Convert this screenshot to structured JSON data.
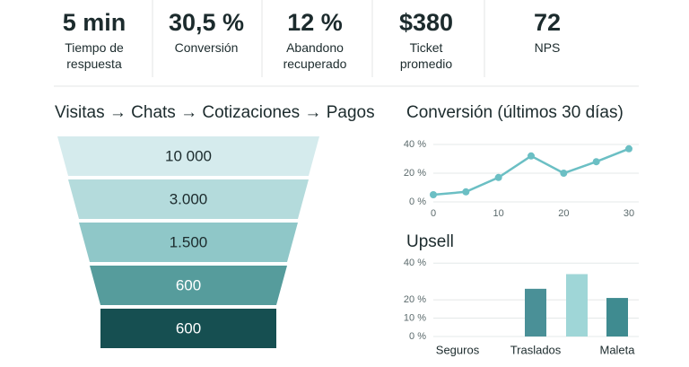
{
  "kpis": [
    {
      "value": "5 min",
      "label": "Tiempo de respuesta"
    },
    {
      "value": "30,5 %",
      "label": "Conversión"
    },
    {
      "value": "12 %",
      "label": "Abandono recuperado"
    },
    {
      "value": "$380",
      "label": "Ticket promedio"
    },
    {
      "value": "72",
      "label": "NPS"
    }
  ],
  "chart_data": [
    {
      "type": "funnel",
      "title": "Visitas → Chats → Cotizaciones → Pagos",
      "values": [
        10000,
        3000,
        1500,
        600,
        600
      ],
      "value_labels": [
        "10 000",
        "3.000",
        "1.500",
        "600",
        "600"
      ],
      "colors": [
        "#d5ebed",
        "#b4dbdc",
        "#8fc7c8",
        "#569c9c",
        "#164f51"
      ]
    },
    {
      "type": "line",
      "title": "Conversión (últimos 30 días)",
      "x": [
        0,
        5,
        10,
        15,
        20,
        25,
        30
      ],
      "values": [
        5,
        7,
        17,
        32,
        20,
        28,
        37
      ],
      "color": "#6bbfc4",
      "xlim": [
        0,
        30
      ],
      "xticks": [
        0,
        10,
        20,
        30
      ],
      "ylim": [
        0,
        40
      ],
      "yticks": [
        {
          "value": 0,
          "label": "0 %"
        },
        {
          "value": 20,
          "label": "20 %"
        },
        {
          "value": 40,
          "label": "40 %"
        }
      ],
      "grid": true
    },
    {
      "type": "bar",
      "title": "Upsell",
      "categories": [
        "Seguros",
        "Traslados",
        null,
        "Maleta"
      ],
      "values": [
        0,
        26,
        34,
        21
      ],
      "colors": [
        "#4a9097",
        "#4a9097",
        "#9fd6d7",
        "#3f8b90"
      ],
      "ylim": [
        0,
        45
      ],
      "yticks": [
        {
          "value": 0,
          "label": "0 %"
        },
        {
          "value": 10,
          "label": "10 %"
        },
        {
          "value": 20,
          "label": "20 %"
        },
        {
          "value": 40,
          "label": "40 %"
        }
      ],
      "grid": true
    }
  ]
}
